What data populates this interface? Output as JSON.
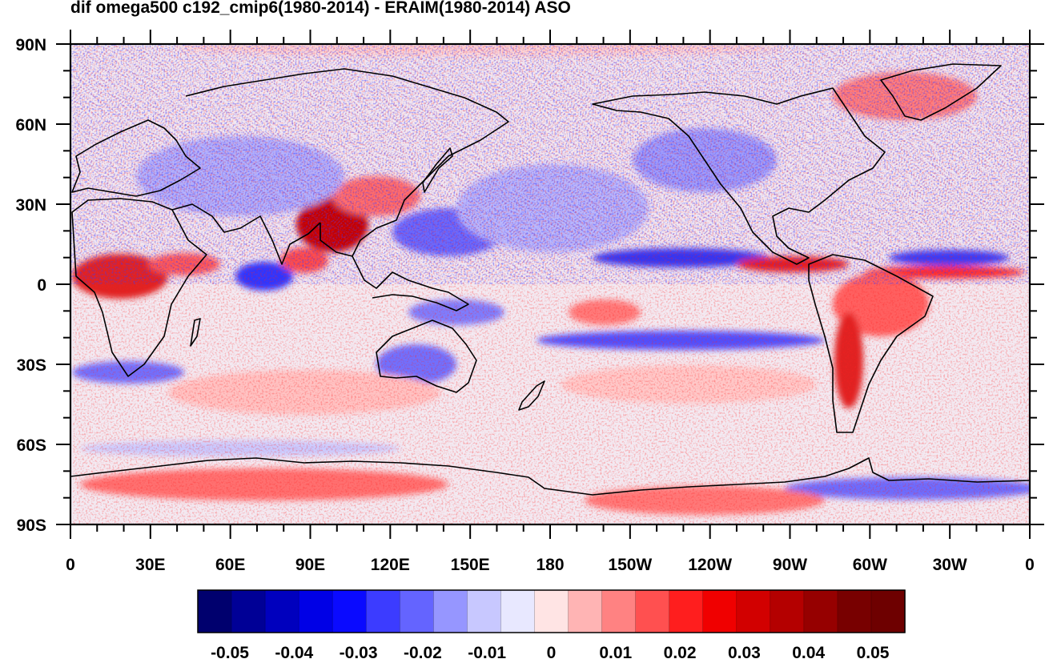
{
  "title": "dif omega500 c192_cmip6(1980-2014) - ERAIM(1980-2014) ASO",
  "map": {
    "projection": "cylindrical equidistant",
    "center_longitude": 180,
    "lon_range": [
      0,
      360
    ],
    "lat_range": [
      -90,
      90
    ],
    "lat_labels": [
      "90N",
      "60N",
      "30N",
      "0",
      "30S",
      "60S",
      "90S"
    ],
    "lat_values": [
      90,
      60,
      30,
      0,
      -30,
      -60,
      -90
    ],
    "lon_labels": [
      "0",
      "30E",
      "60E",
      "90E",
      "120E",
      "150E",
      "180",
      "150W",
      "120W",
      "90W",
      "60W",
      "30W",
      "0"
    ],
    "lon_values": [
      0,
      30,
      60,
      90,
      120,
      150,
      180,
      210,
      240,
      270,
      300,
      330,
      360
    ],
    "coastlines": true
  },
  "colorbar": {
    "labels": [
      "-0.05",
      "-0.04",
      "-0.03",
      "-0.02",
      "-0.01",
      "0",
      "0.01",
      "0.02",
      "0.03",
      "0.04",
      "0.05"
    ],
    "colors": [
      "#00006e",
      "#000096",
      "#0000be",
      "#0000e6",
      "#0a0aff",
      "#3c3cff",
      "#6464ff",
      "#9696ff",
      "#c8c8ff",
      "#e8e8ff",
      "#ffe4e4",
      "#ffb4b4",
      "#ff8282",
      "#ff5050",
      "#ff1e1e",
      "#f00000",
      "#d20000",
      "#b40000",
      "#960000",
      "#780000",
      "#6e0000"
    ]
  }
}
